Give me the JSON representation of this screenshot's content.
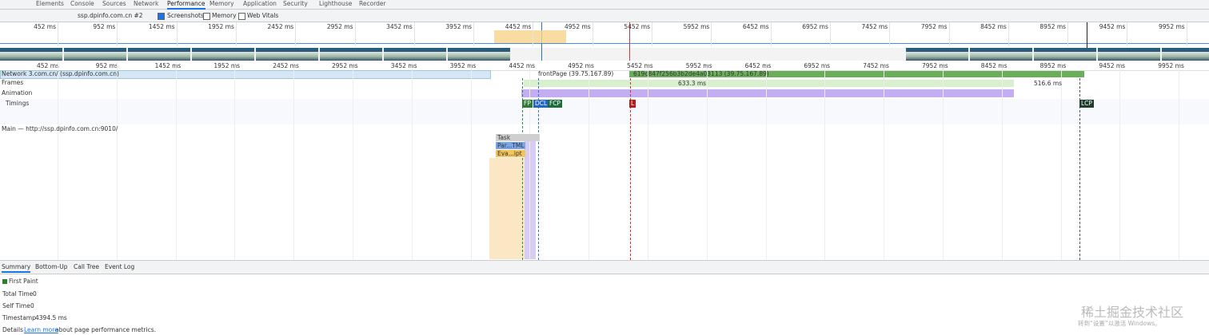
{
  "tabs": [
    "Elements",
    "Console",
    "Sources",
    "Network",
    "Performance",
    "Memory",
    "Application",
    "Security",
    "Lighthouse",
    "Recorder"
  ],
  "toolbar": {
    "target": "ssp.dpinfo.com.cn #2",
    "checkboxes": [
      "Screenshots",
      "Memory",
      "Web Vitals"
    ]
  },
  "ruler": [
    "452 ms",
    "952 ms",
    "1452 ms",
    "1952 ms",
    "2452 ms",
    "2952 ms",
    "3452 ms",
    "3952 ms",
    "4452 ms",
    "4952 ms",
    "5452 ms",
    "5952 ms",
    "6452 ms",
    "6952 ms",
    "7452 ms",
    "7952 ms",
    "8452 ms",
    "8952 ms",
    "9452 ms",
    "9952 ms"
  ],
  "tracks": {
    "network": "Network 3.com.cn/ (ssp.dpinfo.com.cn)",
    "frames": "Frames",
    "animation": "Animation",
    "timings": "Timings",
    "main": "Main — http://ssp.dpinfo.com.cn:9010/"
  },
  "network_items": [
    "frontPage (39.75.167.89)",
    "619c847f256b3b2de4a03113 (39.75.167.89)"
  ],
  "frame_labels": [
    "633.3 ms",
    "516.6 ms"
  ],
  "timing_markers": [
    "FP",
    "DCL",
    "FCP",
    "L",
    "LCP"
  ],
  "flame": [
    "Task",
    "Par...TML",
    "Eva...ipt"
  ],
  "bottom_tabs": [
    "Summary",
    "Bottom-Up",
    "Call Tree",
    "Event Log"
  ],
  "summary": {
    "title": "First Paint",
    "total_label": "Total Time",
    "total_value": "0",
    "self_label": "Self Time",
    "self_value": "0",
    "timestamp_label": "Timestamp",
    "timestamp_value": "4394.5 ms",
    "details": "Details",
    "link": "Learn more",
    "link_rest": "about page performance metrics."
  },
  "watermark": "稀土掘金技术社区",
  "activation": "转到“设置”以激活 Windows。"
}
